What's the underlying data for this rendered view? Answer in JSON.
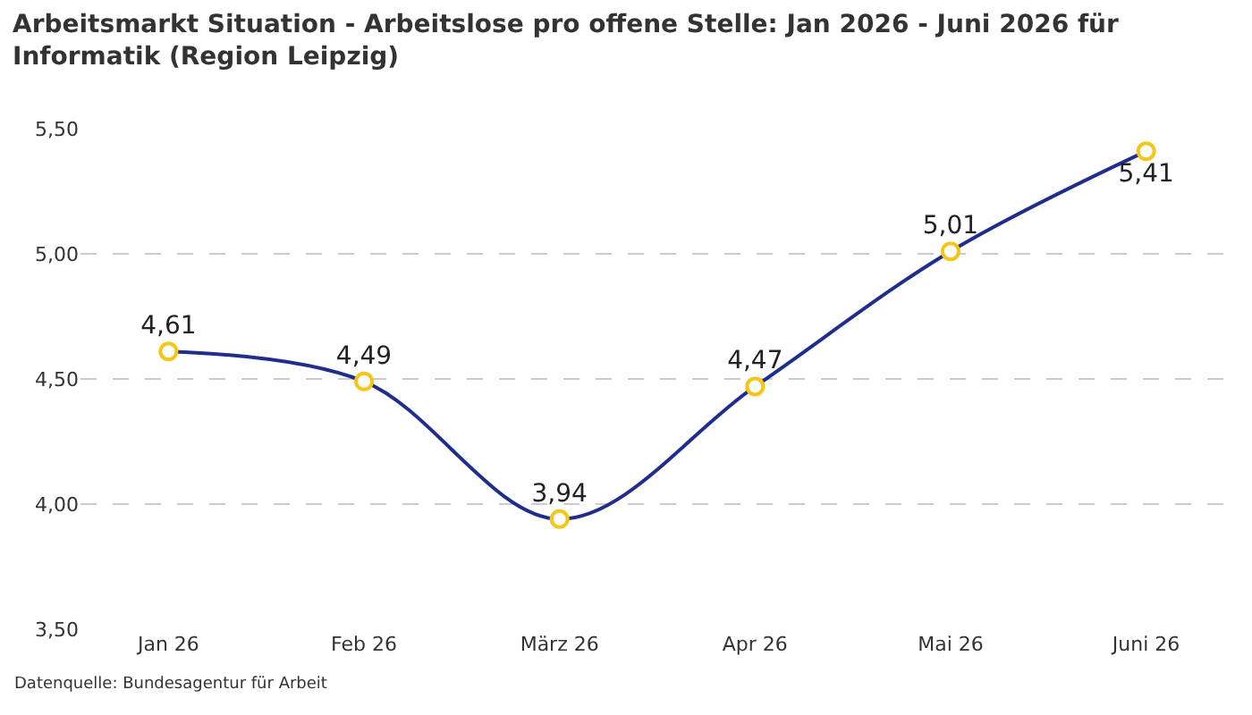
{
  "chart_data": {
    "type": "line",
    "title": "Arbeitsmarkt Situation - Arbeitslose pro offene Stelle: Jan 2026 - Juni 2026 für Informatik (Region Leipzig)",
    "categories": [
      "Jan 26",
      "Feb 26",
      "März 26",
      "Apr 26",
      "Mai 26",
      "Juni 26"
    ],
    "series": [
      {
        "color": "#1f2d8c",
        "colors": [
          "#f5c518",
          "#f5c518",
          "#f5c518",
          "#f5c518",
          "#f5c518",
          "#f5c518"
        ],
        "values": [
          4.61,
          4.49,
          3.94,
          4.47,
          5.01,
          5.41
        ],
        "value_labels": [
          "4,61",
          "4,49",
          "3,94",
          "4,47",
          "5,01",
          "5,41"
        ]
      }
    ],
    "ylim": [
      3.5,
      5.5
    ],
    "yticks": [
      {
        "value": 3.5,
        "label": "3,50"
      },
      {
        "value": 4.0,
        "label": "4,00"
      },
      {
        "value": 4.5,
        "label": "4,50"
      },
      {
        "value": 5.0,
        "label": "5,00"
      },
      {
        "value": 5.5,
        "label": "5,50"
      }
    ],
    "grid": "y",
    "marker": "circle",
    "line_style": "solid",
    "annotations": [
      "Datenquelle: Bundesagentur für Arbeit"
    ]
  }
}
